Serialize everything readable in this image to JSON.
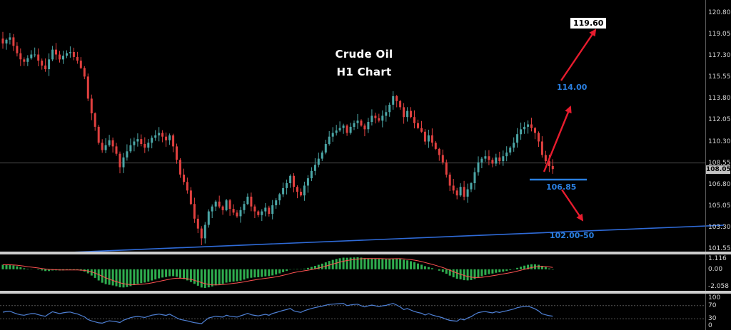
{
  "chart": {
    "title_line1": "Crude Oil",
    "title_line2": "H1 Chart",
    "current_price": "108.05",
    "price_axis_ticks": [
      "120.80",
      "119.05",
      "117.30",
      "115.55",
      "113.80",
      "112.05",
      "110.30",
      "108.55",
      "106.80",
      "105.05",
      "103.30",
      "101.55"
    ],
    "annotations": {
      "target_up": "119.60",
      "resistance": "114.00",
      "support": "106.85",
      "trendline": "102.00-50"
    }
  },
  "macd": {
    "labels": {
      "max": "1.116",
      "zero": "0.00",
      "min": "-2.058"
    }
  },
  "rsi": {
    "labels": [
      "100",
      "70",
      "30",
      "0"
    ],
    "level_values": [
      100,
      70,
      30,
      0
    ],
    "levels": [
      70,
      30
    ]
  },
  "colors": {
    "background": "#000000",
    "bull": "#4ba6a6",
    "bear": "#e0403f",
    "macd": "#2fae4f",
    "signal": "#ff5252",
    "rsi": "#4f81d6",
    "trendline": "#2f6bd8",
    "support_line": "#2a7fe0",
    "arrow": "#e81c2e",
    "label_blue": "#2a7fe0"
  },
  "chart_data": {
    "type": "candlestick",
    "title": "Crude Oil H1 Chart",
    "price_axis": [
      120.8,
      119.05,
      117.3,
      115.55,
      113.8,
      112.05,
      110.3,
      108.55,
      106.8,
      105.05,
      103.3,
      101.55
    ],
    "price_range": [
      101.55,
      120.8
    ],
    "current_price": 108.05,
    "closes": [
      118.3,
      118.6,
      118.8,
      118.1,
      117.5,
      117.0,
      116.8,
      117.1,
      117.4,
      117.4,
      116.9,
      116.5,
      116.2,
      117.0,
      117.8,
      117.4,
      117.0,
      117.3,
      117.5,
      117.6,
      117.2,
      116.9,
      116.3,
      115.6,
      113.8,
      112.6,
      111.5,
      110.2,
      109.6,
      110.0,
      110.4,
      109.9,
      109.3,
      108.2,
      109.0,
      109.5,
      110.0,
      110.3,
      110.5,
      110.1,
      109.8,
      110.2,
      110.6,
      110.8,
      111.0,
      110.7,
      110.4,
      110.8,
      109.9,
      108.8,
      107.6,
      107.0,
      106.3,
      105.2,
      104.0,
      103.2,
      102.4,
      103.5,
      104.6,
      105.0,
      105.4,
      105.0,
      104.7,
      105.5,
      104.8,
      104.5,
      104.2,
      104.7,
      105.2,
      105.8,
      105.0,
      104.6,
      104.3,
      104.6,
      104.9,
      104.4,
      105.1,
      105.5,
      106.0,
      106.5,
      106.9,
      107.5,
      106.6,
      106.2,
      105.9,
      106.7,
      107.3,
      107.9,
      108.4,
      108.9,
      109.4,
      110.1,
      110.7,
      111.0,
      111.2,
      111.4,
      111.6,
      111.0,
      111.5,
      111.8,
      112.0,
      111.6,
      111.3,
      111.9,
      112.4,
      112.2,
      112.0,
      112.4,
      112.7,
      113.3,
      114.0,
      113.6,
      113.1,
      112.3,
      112.8,
      112.3,
      111.8,
      111.4,
      111.1,
      110.3,
      110.8,
      110.2,
      109.7,
      109.2,
      108.6,
      107.6,
      106.7,
      106.3,
      105.9,
      106.6,
      105.8,
      106.4,
      106.9,
      107.8,
      108.6,
      108.9,
      109.1,
      108.8,
      108.5,
      109.0,
      108.7,
      109.1,
      109.4,
      109.8,
      110.2,
      110.9,
      111.3,
      111.5,
      111.7,
      111.4,
      111.0,
      110.3,
      109.2,
      108.7,
      108.3,
      108.05
    ],
    "indicators": [
      {
        "type": "macd",
        "params": [
          12,
          26,
          9
        ],
        "scale_labels": [
          1.116,
          0.0,
          -2.058
        ]
      },
      {
        "type": "rsi",
        "params": [
          14
        ],
        "scale_labels": [
          100,
          70,
          30,
          0
        ],
        "levels": [
          70,
          30
        ]
      }
    ],
    "drawn_levels": {
      "target_up": 119.6,
      "resistance": 114.0,
      "support": 106.85,
      "trendline_label": "102.00-50"
    }
  }
}
